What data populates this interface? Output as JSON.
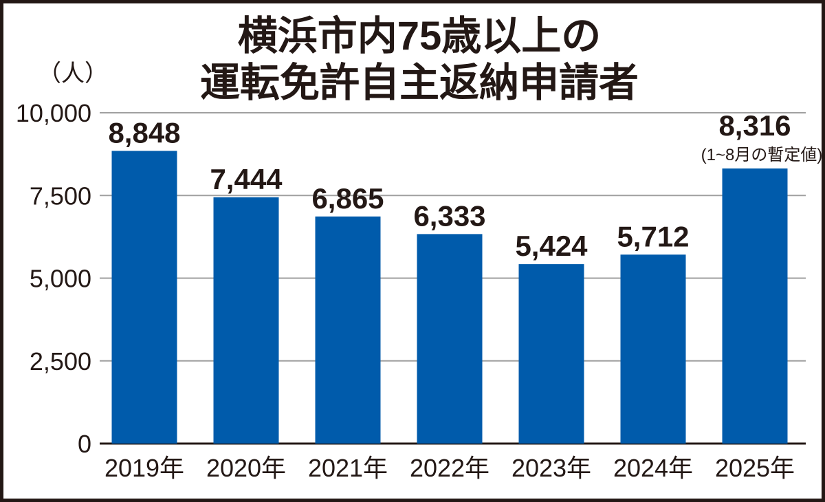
{
  "chart_data": {
    "type": "bar",
    "title": [
      "横浜市内75歳以上の",
      "運転免許自主返納申請者"
    ],
    "ylabel": "（人）",
    "xlabel": "",
    "categories": [
      "2019年",
      "2020年",
      "2021年",
      "2022年",
      "2023年",
      "2024年",
      "2025年"
    ],
    "values": [
      8848,
      7444,
      6865,
      6333,
      5424,
      5712,
      8316
    ],
    "value_labels": [
      "8,848",
      "7,444",
      "6,865",
      "6,333",
      "5,424",
      "5,712",
      "8,316"
    ],
    "annotations": [
      {
        "category": "2025年",
        "text": "(1~8月の暫定値)"
      }
    ],
    "ylim": [
      0,
      10000
    ],
    "yticks": [
      0,
      2500,
      5000,
      7500,
      10000
    ],
    "ytick_labels": [
      "0",
      "2,500",
      "5,000",
      "7,500",
      "10,000"
    ],
    "grid": true,
    "colors": {
      "bar": "#005bab",
      "grid": "#a0a0a0",
      "text": "#231815",
      "frame": "#231815"
    }
  }
}
